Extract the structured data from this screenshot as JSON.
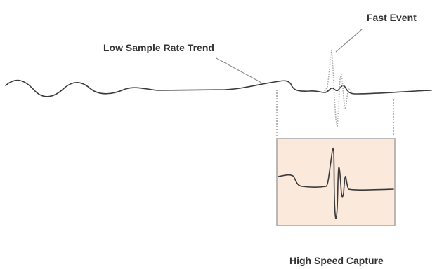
{
  "labels": {
    "trend": "Low Sample Rate Trend",
    "fast_event": "Fast Event",
    "capture": "High Speed Capture"
  },
  "colors": {
    "waveform": "#3a3a3a",
    "dotted_spike": "#a9a9a9",
    "guide_lines": "#8c8c8c",
    "capture_fill": "#fbe9dc",
    "capture_border": "#a9a9a9",
    "text": "#333333"
  }
}
